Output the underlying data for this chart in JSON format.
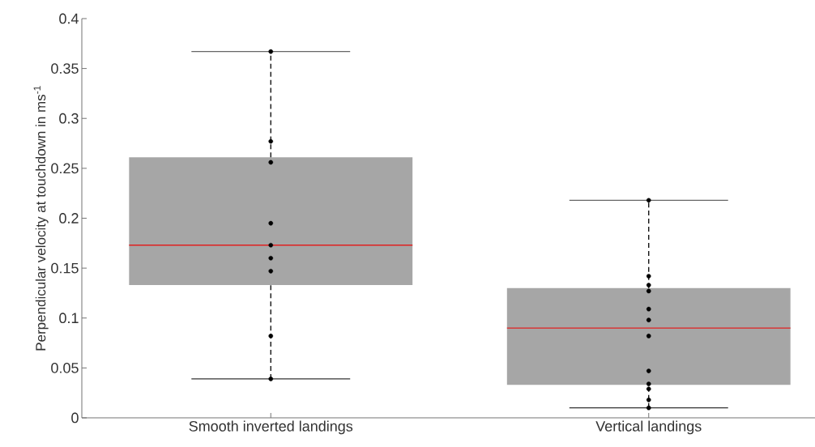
{
  "chart_data": {
    "type": "box",
    "ylabel": "Perpendicular velocity at touchdown in ms$^{-1}$",
    "categories": [
      "Smooth inverted landings",
      "Vertical landings"
    ],
    "boxes": [
      {
        "low": 0.039,
        "q1": 0.133,
        "median": 0.173,
        "q3": 0.261,
        "high": 0.367
      },
      {
        "low": 0.01,
        "q1": 0.033,
        "median": 0.09,
        "q3": 0.13,
        "high": 0.218
      }
    ],
    "color": "#a6a6a6",
    "ylim": [
      0,
      0.4
    ],
    "yticks": [
      0,
      0.05,
      0.1,
      0.15,
      0.2,
      0.25,
      0.3,
      0.35,
      0.4
    ],
    "grid": false,
    "series": [
      {
        "type": "scatter",
        "color": "#000000",
        "x": [
          "Smooth inverted landings",
          "Smooth inverted landings",
          "Smooth inverted landings",
          "Smooth inverted landings",
          "Smooth inverted landings",
          "Smooth inverted landings",
          "Smooth inverted landings",
          "Smooth inverted landings",
          "Smooth inverted landings"
        ],
        "values": [
          0.367,
          0.277,
          0.256,
          0.195,
          0.173,
          0.16,
          0.147,
          0.082,
          0.039
        ]
      },
      {
        "type": "scatter",
        "color": "#000000",
        "x": [
          "Vertical landings",
          "Vertical landings",
          "Vertical landings",
          "Vertical landings",
          "Vertical landings",
          "Vertical landings",
          "Vertical landings",
          "Vertical landings",
          "Vertical landings",
          "Vertical landings",
          "Vertical landings",
          "Vertical landings"
        ],
        "values": [
          0.218,
          0.142,
          0.133,
          0.127,
          0.109,
          0.098,
          0.082,
          0.047,
          0.034,
          0.029,
          0.018,
          0.01
        ]
      }
    ],
    "marker": "circle"
  }
}
